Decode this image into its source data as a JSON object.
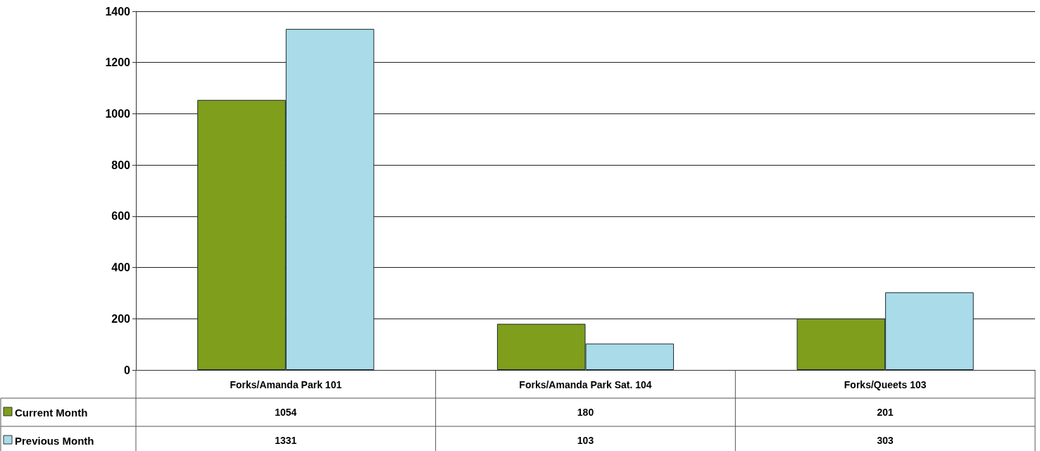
{
  "chart_data": {
    "type": "bar",
    "categories": [
      "Forks/Amanda Park 101",
      "Forks/Amanda Park Sat. 104",
      "Forks/Queets 103"
    ],
    "series": [
      {
        "name": "Current Month",
        "color": "#7f9e1c",
        "values": [
          1054,
          180,
          201
        ]
      },
      {
        "name": "Previous Month",
        "color": "#a9dbe8",
        "values": [
          1331,
          103,
          303
        ]
      }
    ],
    "ylim": [
      0,
      1400
    ],
    "yticks": [
      0,
      200,
      400,
      600,
      800,
      1000,
      1200,
      1400
    ],
    "grid": "y",
    "legend": "bottom left",
    "data_labels": true
  }
}
